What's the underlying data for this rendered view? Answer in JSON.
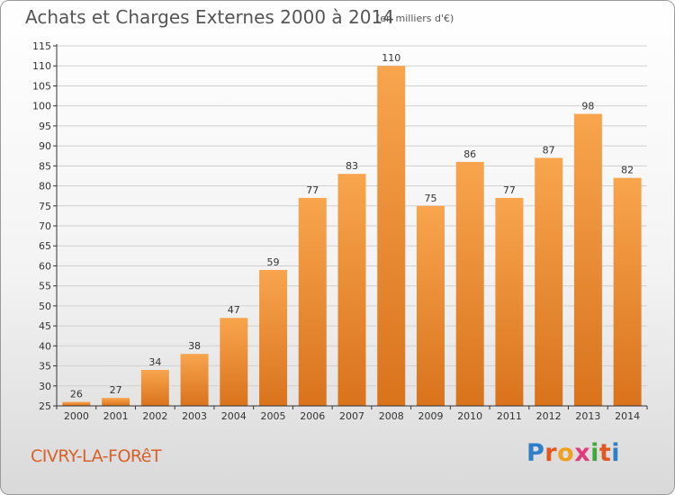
{
  "header": {
    "title": "Achats et Charges Externes 2000 à 2014",
    "subtitle": "(en milliers d'€)"
  },
  "footer": {
    "commune": "CIVRY-LA-FORêT",
    "logo": {
      "letters": [
        "P",
        "r",
        "o",
        "x",
        "i",
        "t",
        "i"
      ]
    }
  },
  "colors": {
    "bar_top": "#f8a54e",
    "bar_bottom": "#d9731c",
    "grid": "#d0d0d0",
    "axis": "#333333",
    "title": "#555555",
    "commune": "#d9602a",
    "logo": [
      "#2f7fc8",
      "#e2571e",
      "#f0a020",
      "#e23a7a",
      "#42a83c",
      "#e2571e",
      "#2f7fc8"
    ]
  },
  "chart_data": {
    "type": "bar",
    "title": "Achats et Charges Externes 2000 à 2014",
    "subtitle": "(en milliers d'€)",
    "categories": [
      "2000",
      "2001",
      "2002",
      "2003",
      "2004",
      "2005",
      "2006",
      "2007",
      "2008",
      "2009",
      "2010",
      "2011",
      "2012",
      "2013",
      "2014"
    ],
    "values": [
      26,
      27,
      34,
      38,
      47,
      59,
      77,
      83,
      110,
      75,
      86,
      77,
      87,
      98,
      82
    ],
    "ylim": [
      25,
      115
    ],
    "yticks": [
      25,
      30,
      35,
      40,
      45,
      50,
      55,
      60,
      65,
      70,
      75,
      80,
      85,
      90,
      95,
      100,
      105,
      110,
      115
    ],
    "grid": true,
    "legend": "none"
  }
}
